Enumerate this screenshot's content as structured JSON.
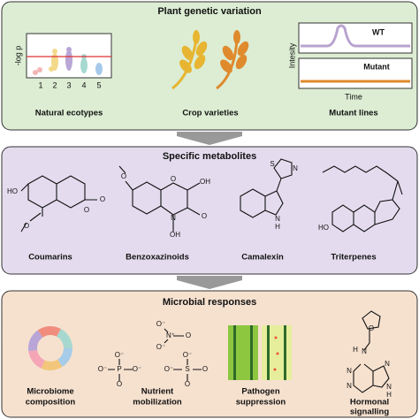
{
  "panel1": {
    "title": "Plant genetic variation",
    "manhattan": {
      "ylabel": "-log p",
      "xticks": [
        "1",
        "2",
        "3",
        "4",
        "5"
      ]
    },
    "expression": {
      "ylabel": "Intesity",
      "wt": "WT",
      "mutant": "Mutant",
      "xlabel": "Time"
    },
    "labels": [
      "Natural ecotypes",
      "Crop varieties",
      "Mutant lines"
    ]
  },
  "panel2": {
    "title": "Specific metabolites",
    "molecules": [
      {
        "name": "Coumarins",
        "atoms": [
          "HO",
          "O",
          "O",
          "O"
        ]
      },
      {
        "name": "Benzoxazinoids",
        "atoms": [
          "O",
          "O",
          "OH",
          "N",
          "O",
          "OH"
        ]
      },
      {
        "name": "Camalexin",
        "atoms": [
          "S",
          "N",
          "N",
          "H"
        ]
      },
      {
        "name": "Triterpenes",
        "atoms": [
          "HO"
        ]
      }
    ]
  },
  "panel3": {
    "title": "Microbial responses",
    "molecules": [
      {
        "atoms": [
          "O⁻",
          "N⁺",
          "O",
          "O⁻"
        ]
      },
      {
        "atoms": [
          "O⁻",
          "O⁻",
          "P",
          "O⁻",
          "O"
        ]
      },
      {
        "atoms": [
          "O⁻",
          "O⁻",
          "S",
          "O",
          "O"
        ]
      },
      {
        "atoms": [
          "O",
          "H",
          "N",
          "N",
          "N",
          "N",
          "N",
          "H"
        ]
      }
    ],
    "labels": [
      [
        "Microbiome",
        "composition"
      ],
      [
        "Nutrient",
        "mobilization"
      ],
      [
        "Pathogen",
        "suppression"
      ],
      [
        "Hormonal",
        "signalling"
      ]
    ]
  }
}
